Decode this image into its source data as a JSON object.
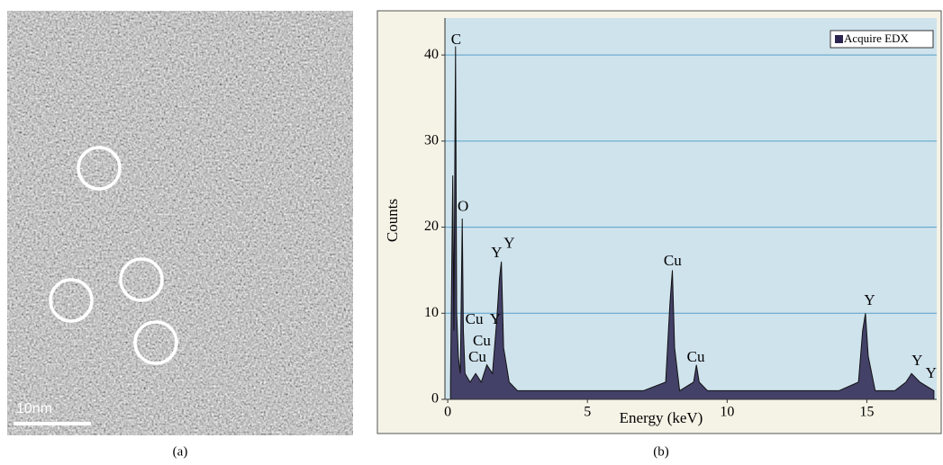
{
  "image_panel": {
    "scale_bar_label": "10nm",
    "caption": "(a)"
  },
  "chart_data": {
    "type": "area",
    "caption": "(b)",
    "x_label": "Energy (keV)",
    "y_label": "Counts",
    "x": [
      0.1,
      0.18,
      0.22,
      0.26,
      0.28,
      0.32,
      0.38,
      0.45,
      0.52,
      0.56,
      0.62,
      0.8,
      1.0,
      1.2,
      1.4,
      1.6,
      1.75,
      1.85,
      1.92,
      2.0,
      2.2,
      2.5,
      3,
      4,
      5,
      6,
      7,
      7.8,
      7.95,
      8.04,
      8.12,
      8.3,
      8.8,
      8.9,
      9.0,
      9.3,
      10,
      11,
      12,
      13,
      14,
      14.7,
      14.85,
      14.95,
      15.05,
      15.3,
      16,
      16.4,
      16.6,
      16.9,
      17.4
    ],
    "series": [
      {
        "name": "Acquire EDX",
        "color": "#2a2550",
        "values": [
          2,
          26,
          8,
          31,
          41,
          10,
          5,
          3,
          21,
          8,
          3,
          2,
          3,
          2,
          4,
          3,
          9,
          14,
          16,
          6,
          2,
          1,
          1,
          1,
          1,
          1,
          1,
          2,
          11,
          15,
          6,
          1,
          2,
          4,
          2,
          1,
          1,
          1,
          1,
          1,
          1,
          2,
          8,
          10,
          5,
          1,
          1,
          2,
          3,
          2,
          1
        ]
      }
    ],
    "xlim": [
      -0.1,
      17.5
    ],
    "ylim": [
      0,
      44.3
    ],
    "xticks": [
      0,
      5,
      10,
      15
    ],
    "yticks": [
      0,
      10,
      20,
      30,
      40
    ],
    "grid": true,
    "legend": "top-right",
    "annotations": [
      {
        "label": "C",
        "x": 0.3,
        "y": 41.7
      },
      {
        "label": "O",
        "x": 0.55,
        "y": 22.3
      },
      {
        "label": "Y",
        "x": 1.75,
        "y": 16.9
      },
      {
        "label": "Y",
        "x": 2.2,
        "y": 18.0
      },
      {
        "label": "Cu",
        "x": 0.95,
        "y": 9.2
      },
      {
        "label": "Y",
        "x": 1.7,
        "y": 9.2
      },
      {
        "label": "Cu",
        "x": 1.22,
        "y": 6.7
      },
      {
        "label": "Cu",
        "x": 1.06,
        "y": 4.8
      },
      {
        "label": "Cu",
        "x": 8.05,
        "y": 16.0
      },
      {
        "label": "Cu",
        "x": 8.88,
        "y": 4.8
      },
      {
        "label": "Y",
        "x": 15.1,
        "y": 11.4
      },
      {
        "label": "Y",
        "x": 16.8,
        "y": 4.4
      },
      {
        "label": "Y",
        "x": 17.3,
        "y": 2.9
      }
    ]
  }
}
